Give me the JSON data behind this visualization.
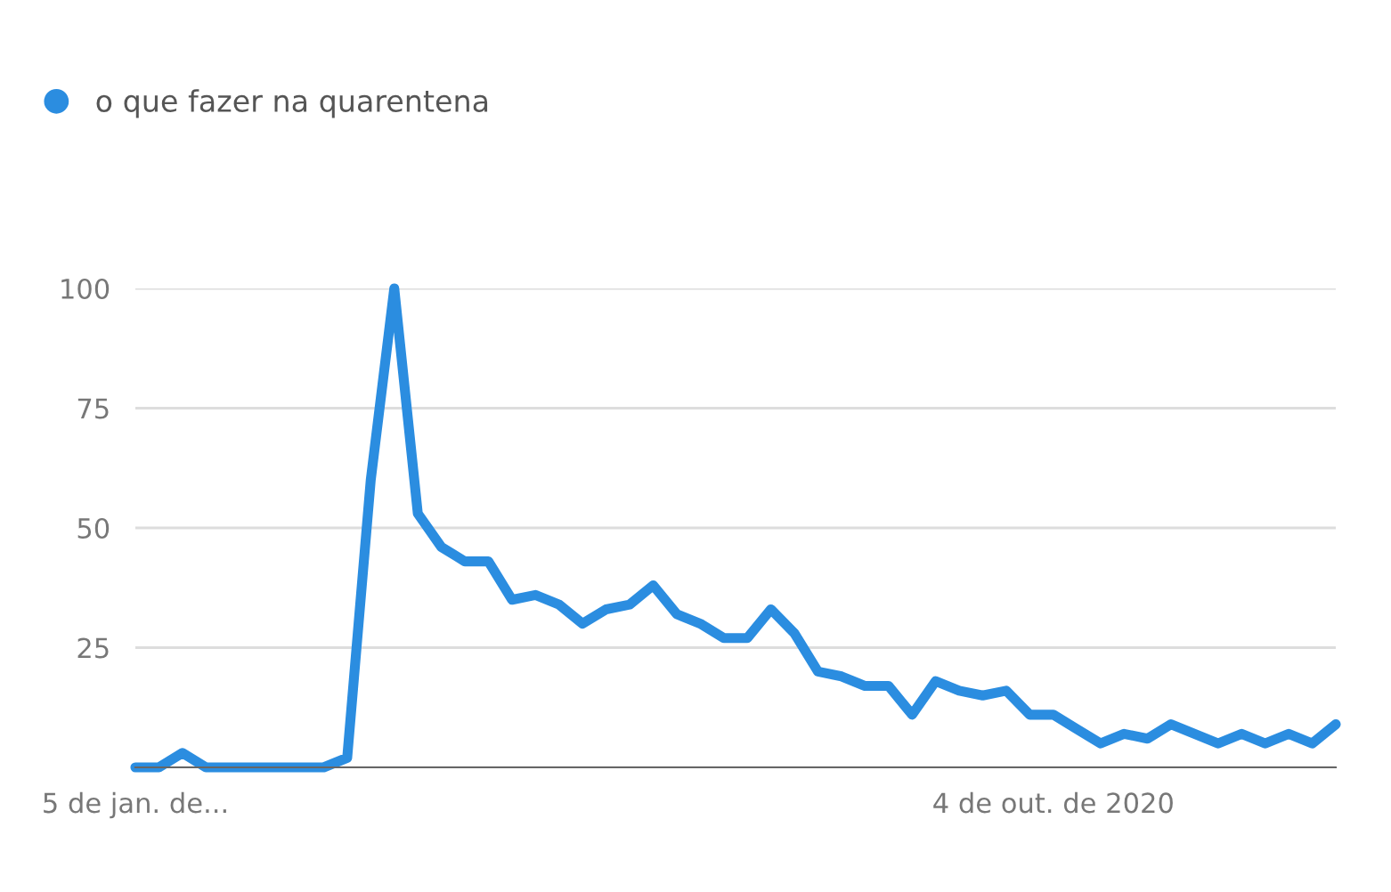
{
  "chart_data": {
    "type": "line",
    "x": [
      "2020-01-05",
      "2020-01-12",
      "2020-01-19",
      "2020-01-26",
      "2020-02-02",
      "2020-02-09",
      "2020-02-16",
      "2020-02-23",
      "2020-03-01",
      "2020-03-08",
      "2020-03-15",
      "2020-03-22",
      "2020-03-29",
      "2020-04-05",
      "2020-04-12",
      "2020-04-19",
      "2020-04-26",
      "2020-05-03",
      "2020-05-10",
      "2020-05-17",
      "2020-05-24",
      "2020-05-31",
      "2020-06-07",
      "2020-06-14",
      "2020-06-21",
      "2020-06-28",
      "2020-07-05",
      "2020-07-12",
      "2020-07-19",
      "2020-07-26",
      "2020-08-02",
      "2020-08-09",
      "2020-08-16",
      "2020-08-23",
      "2020-08-30",
      "2020-09-06",
      "2020-09-13",
      "2020-09-20",
      "2020-09-27",
      "2020-10-04",
      "2020-10-11",
      "2020-10-18",
      "2020-10-25",
      "2020-11-01",
      "2020-11-08",
      "2020-11-15",
      "2020-11-22",
      "2020-11-29",
      "2020-12-06",
      "2020-12-13",
      "2020-12-20",
      "2020-12-27"
    ],
    "series": [
      {
        "name": "o que fazer na quarentena",
        "color": "#2b8de0",
        "values": [
          0,
          0,
          3,
          0,
          0,
          0,
          0,
          0,
          0,
          2,
          60,
          100,
          53,
          46,
          43,
          43,
          35,
          36,
          34,
          30,
          33,
          34,
          38,
          32,
          30,
          27,
          27,
          33,
          28,
          20,
          19,
          17,
          17,
          11,
          18,
          16,
          15,
          16,
          11,
          11,
          8,
          5,
          7,
          6,
          9,
          7,
          5,
          7,
          5,
          7,
          5,
          9
        ]
      }
    ],
    "xlim": [
      "2020-01-05",
      "2020-12-27"
    ],
    "xticks": [
      {
        "value": "2020-01-05",
        "label": "5 de jan. de..."
      },
      {
        "value": "2020-10-04",
        "label": "4 de out. de 2020"
      }
    ],
    "ylim": [
      0,
      100
    ],
    "yticks": [
      {
        "value": 0,
        "label": null
      },
      25,
      50,
      75,
      100
    ],
    "grid": "y",
    "legend": "top left",
    "marker": "none",
    "line_style": "solid"
  }
}
